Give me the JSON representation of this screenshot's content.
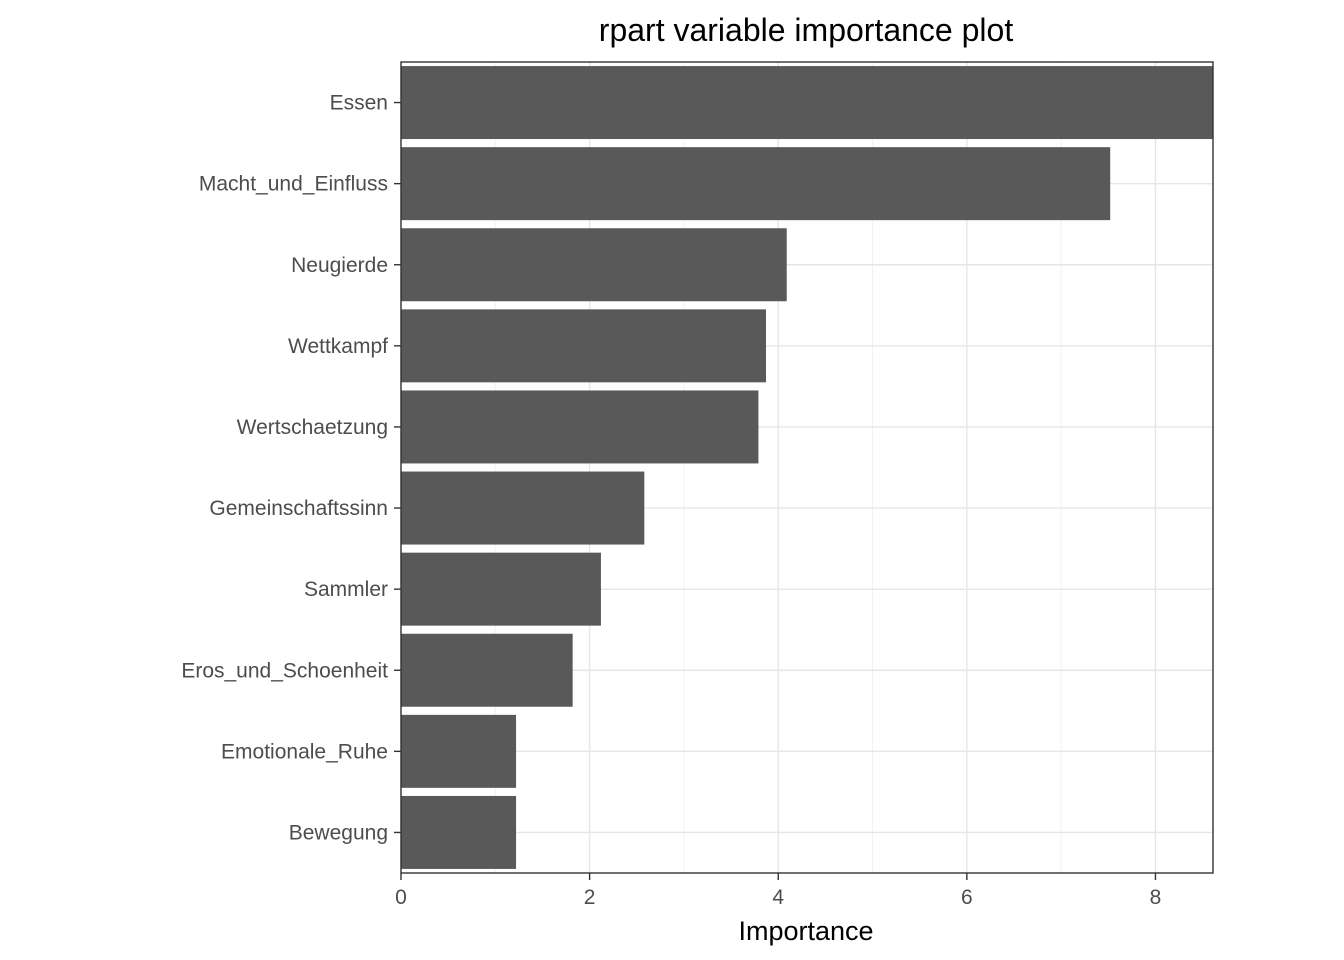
{
  "chart_data": {
    "type": "bar",
    "orientation": "horizontal",
    "title": "rpart variable importance plot",
    "xlabel": "Importance",
    "ylabel": "",
    "categories": [
      "Essen",
      "Macht_und_Einfluss",
      "Neugierde",
      "Wettkampf",
      "Wertschaetzung",
      "Gemeinschaftssinn",
      "Sammler",
      "Eros_und_Schoenheit",
      "Emotionale_Ruhe",
      "Bewegung"
    ],
    "values": [
      8.61,
      7.52,
      4.09,
      3.87,
      3.79,
      2.58,
      2.12,
      1.82,
      1.22,
      1.22
    ],
    "xlim": [
      0,
      8.61
    ],
    "x_ticks": [
      "0",
      "2",
      "4",
      "6",
      "8"
    ],
    "grid": true,
    "legend": "none",
    "bar_color": "#595959"
  }
}
